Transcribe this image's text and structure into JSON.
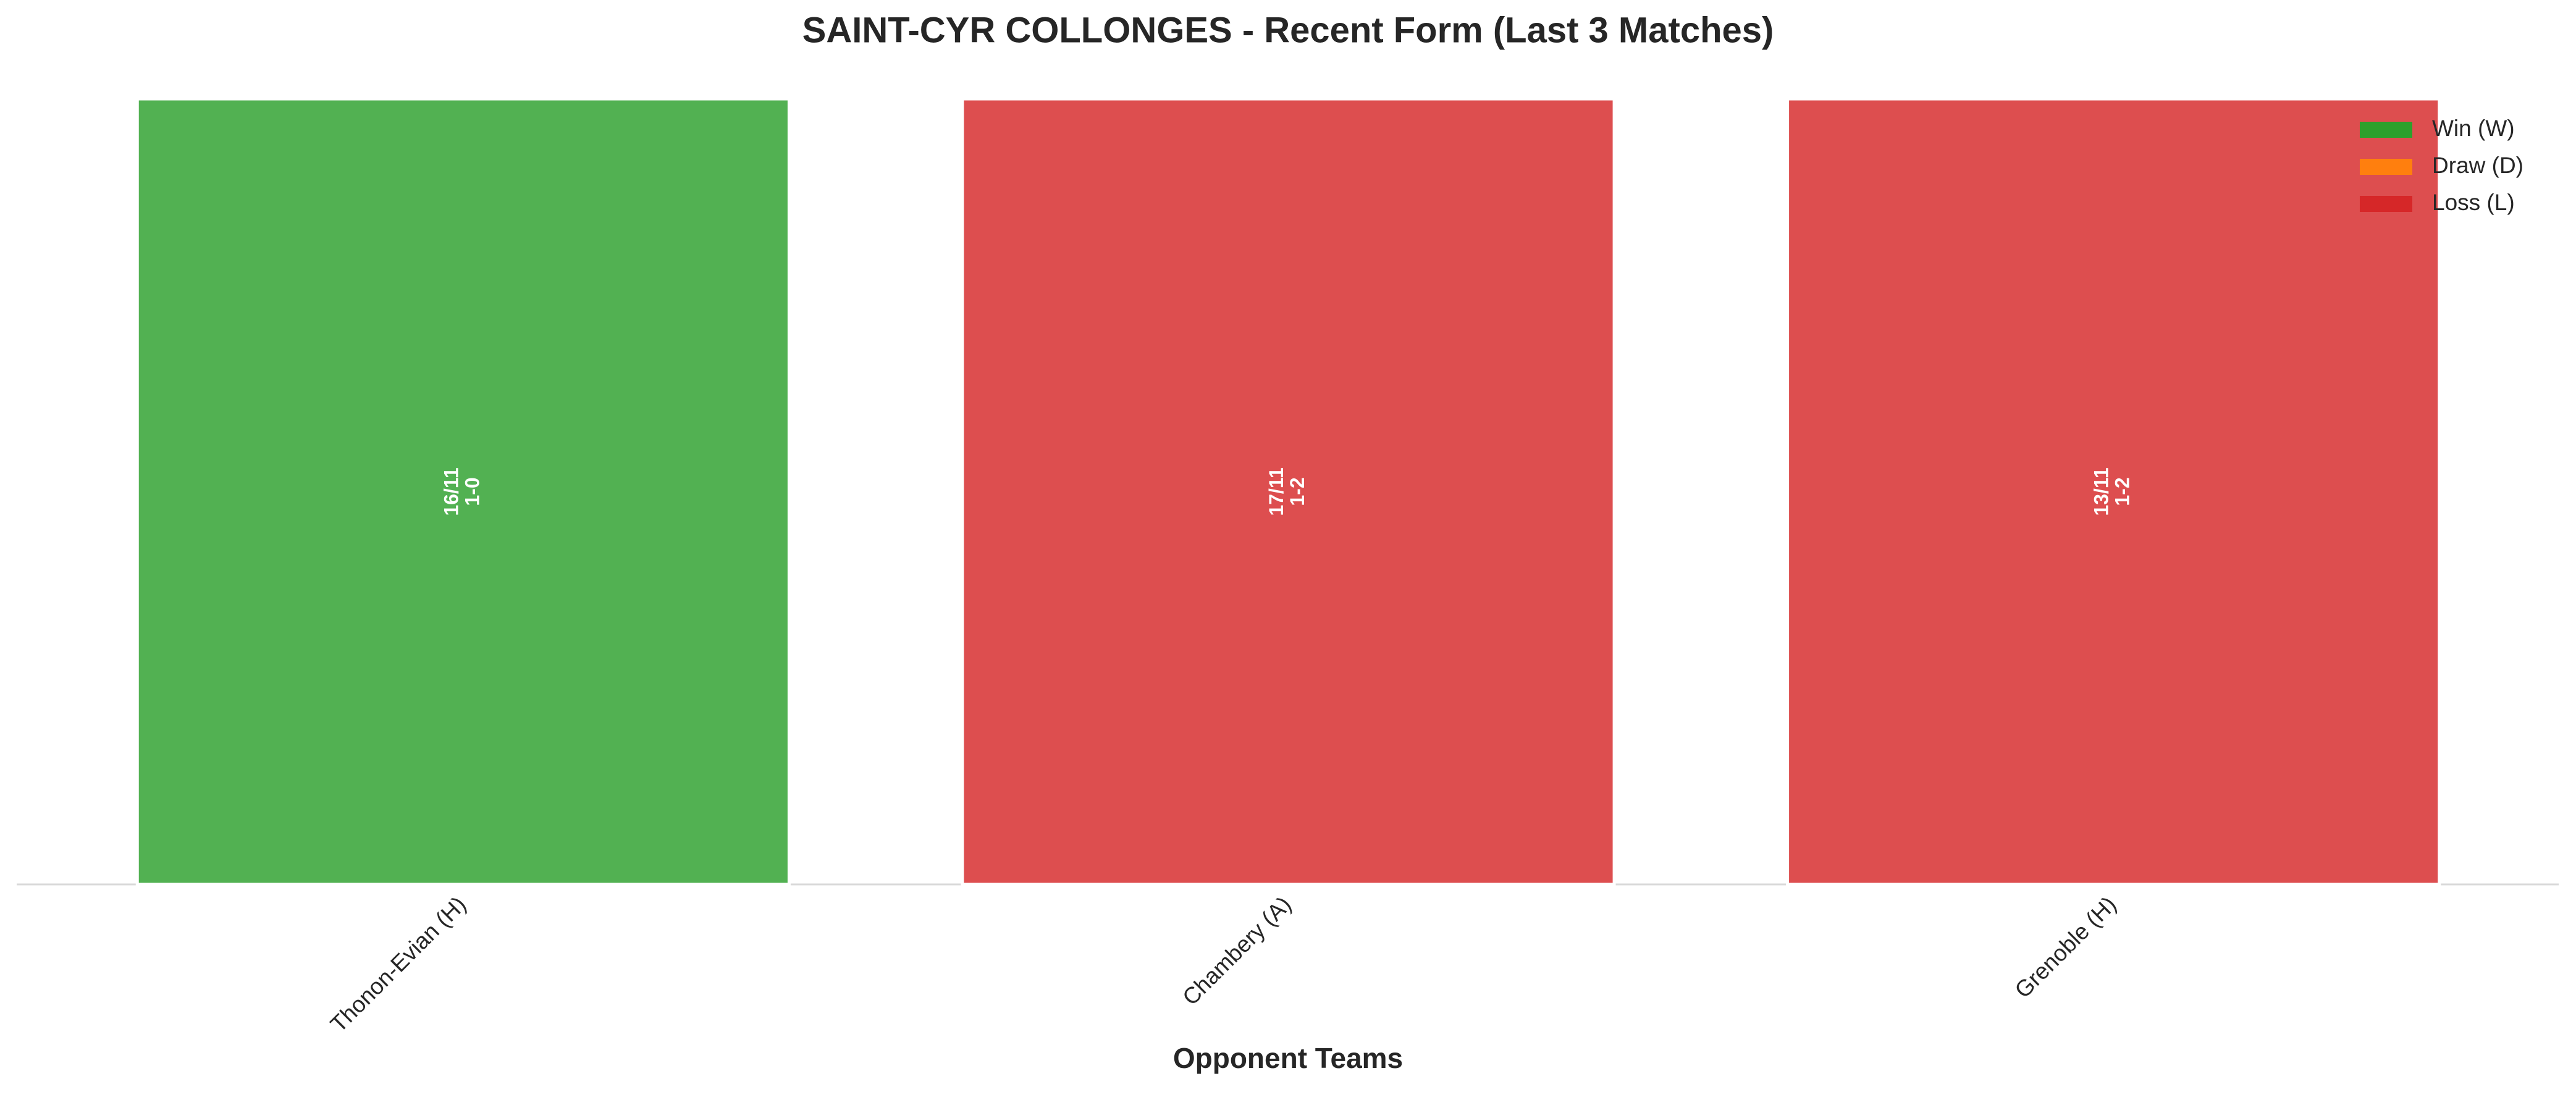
{
  "chart_data": {
    "type": "bar",
    "title": "SAINT-CYR COLLONGES - Recent Form (Last 3 Matches)",
    "x_label": "Opponent Teams",
    "categories": [
      "Thonon-Evian (H)",
      "Chambery (A)",
      "Grenoble (H)"
    ],
    "values": [
      1,
      1,
      1
    ],
    "colors": [
      "#2ca02c",
      "#d62728",
      "#d62728"
    ],
    "dates": [
      "16/11",
      "17/11",
      "13/11"
    ],
    "scores": [
      "1-0",
      "1-2",
      "1-2"
    ],
    "ylim": [
      0,
      1
    ],
    "legend_position": "upper right",
    "legend": [
      {
        "name": "Win (W)",
        "color": "#2ca02c"
      },
      {
        "name": "Draw (D)",
        "color": "#ff7f0e"
      },
      {
        "name": "Loss (L)",
        "color": "#d62728"
      }
    ]
  }
}
